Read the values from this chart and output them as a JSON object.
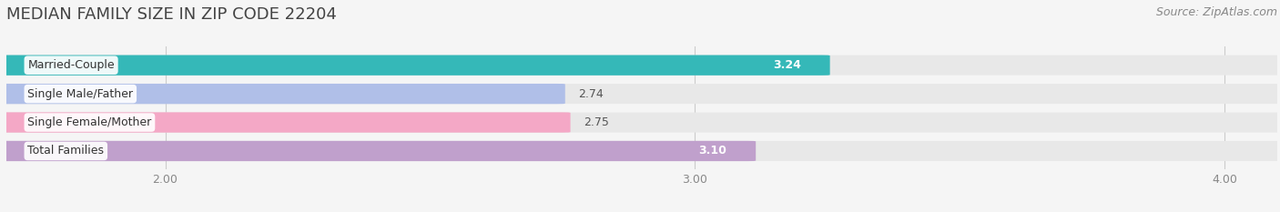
{
  "title": "MEDIAN FAMILY SIZE IN ZIP CODE 22204",
  "source": "Source: ZipAtlas.com",
  "categories": [
    "Married-Couple",
    "Single Male/Father",
    "Single Female/Mother",
    "Total Families"
  ],
  "values": [
    3.24,
    2.74,
    2.75,
    3.1
  ],
  "bar_colors": [
    "#35b8b8",
    "#b0bfe8",
    "#f4a8c6",
    "#c0a0cc"
  ],
  "track_color": "#e8e8e8",
  "xlim_start": 1.7,
  "xlim_end": 4.1,
  "xticks": [
    2.0,
    3.0,
    4.0
  ],
  "xtick_labels": [
    "2.00",
    "3.00",
    "4.00"
  ],
  "bar_height": 0.68,
  "background_color": "#f5f5f5",
  "plot_bg_color": "#f5f5f5",
  "title_fontsize": 13,
  "source_fontsize": 9,
  "label_fontsize": 9,
  "value_fontsize": 9,
  "tick_fontsize": 9,
  "value_color_inside": "#ffffff",
  "value_color_outside": "#555555",
  "label_pill_color": "#ffffff"
}
